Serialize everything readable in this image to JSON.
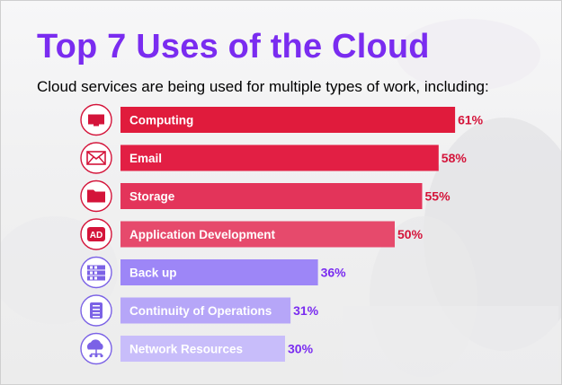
{
  "header": {
    "title": "Top 7 Uses of the Cloud",
    "subtitle": "Cloud services are being used for multiple types of work, including:"
  },
  "colors": {
    "title": "#7a2cf0",
    "value_red": "#d4143a",
    "value_purple": "#7a2cf0"
  },
  "chart_data": {
    "type": "bar",
    "orientation": "horizontal",
    "categories": [
      "Computing",
      "Email",
      "Storage",
      "Application Development",
      "Back up",
      "Continuity of Operations",
      "Network Resources"
    ],
    "values": [
      61,
      58,
      55,
      50,
      36,
      31,
      30
    ],
    "value_labels": [
      "61%",
      "58%",
      "55%",
      "50%",
      "36%",
      "31%",
      "30%"
    ],
    "bar_colors": [
      "#e01b3c",
      "#e21f44",
      "#e3345a",
      "#e64a6c",
      "#9d86f7",
      "#b6a6f8",
      "#c8bdfa"
    ],
    "icons": [
      "computer-monitor-icon",
      "envelope-icon",
      "folder-icon",
      "app-dev-icon",
      "backup-server-icon",
      "notebook-icon",
      "cloud-network-icon"
    ],
    "icon_text": [
      "",
      "",
      "",
      "AD",
      "",
      "",
      ""
    ],
    "grid": false,
    "legend": "none"
  }
}
